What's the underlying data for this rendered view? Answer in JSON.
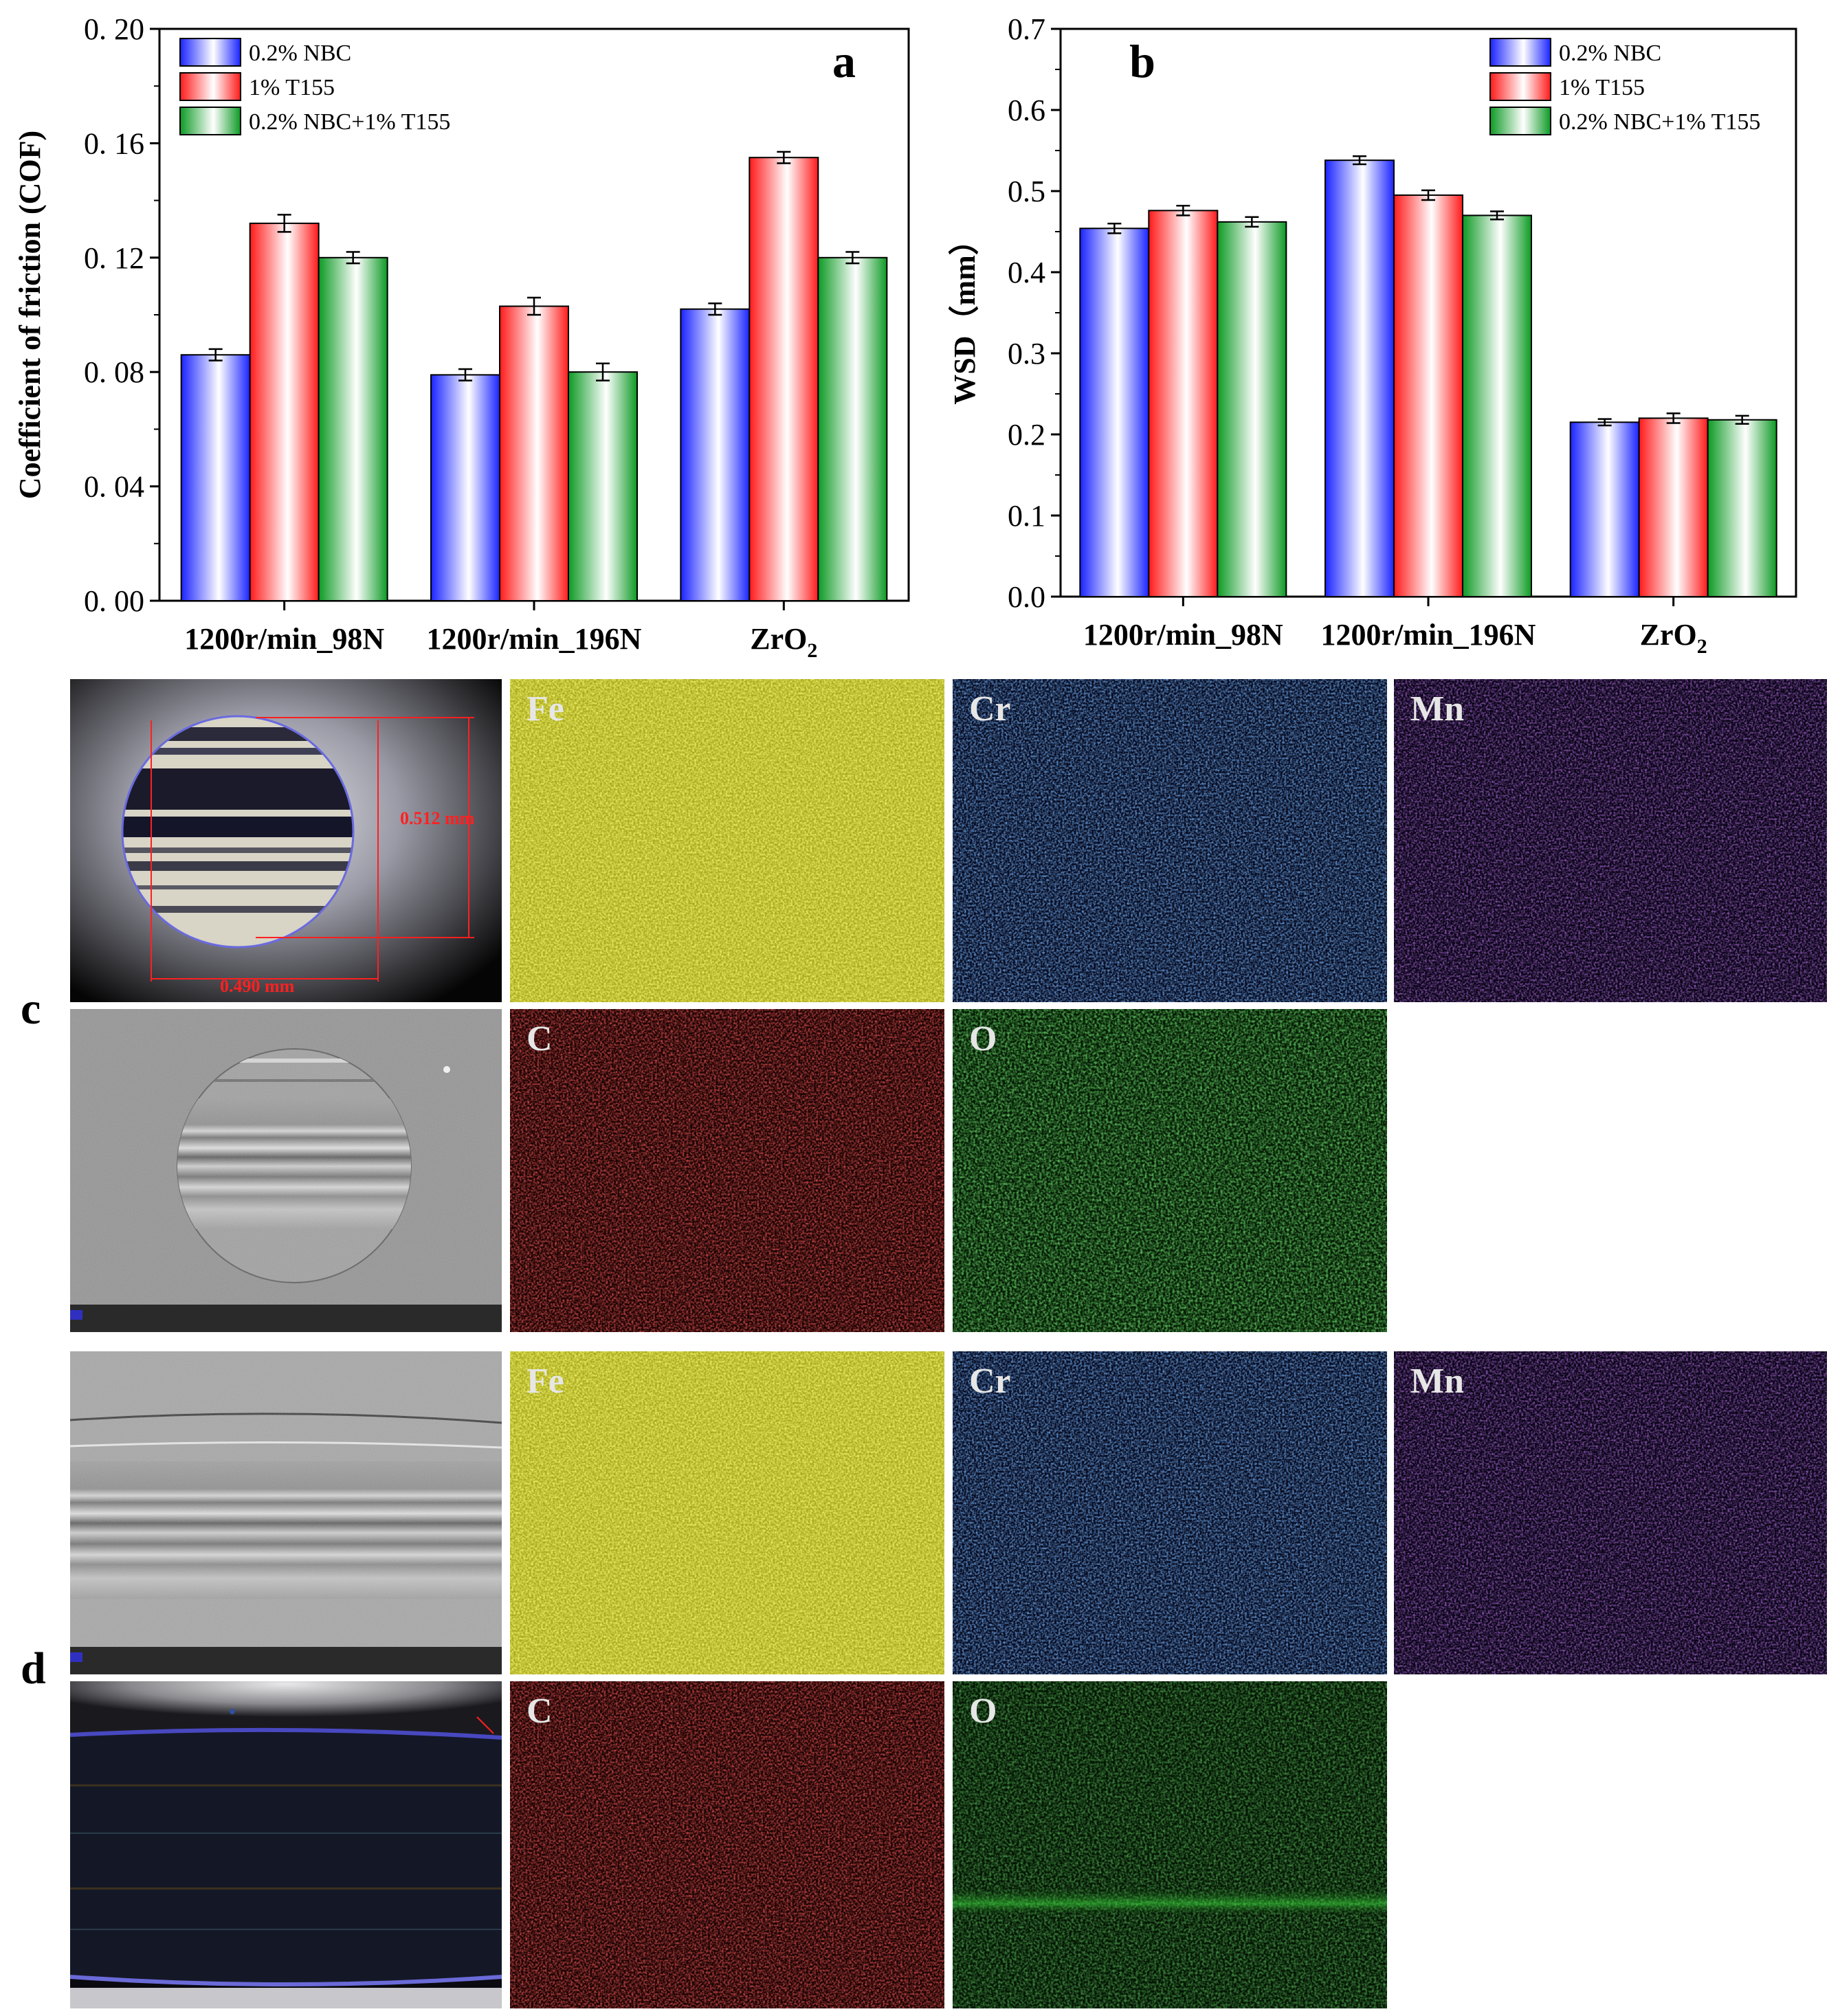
{
  "panels": {
    "c_label": "c",
    "d_label": "d",
    "c_map_labels": [
      "Fe",
      "Cr",
      "Mn",
      "C",
      "O"
    ],
    "d_map_labels": [
      "Fe",
      "Cr",
      "Mn",
      "C",
      "O"
    ],
    "c_measure_h": "0.490 mm",
    "c_measure_v": "0.512 mm"
  },
  "colors": {
    "series": [
      "#1a24ff",
      "#ff1a1a",
      "#0d9a24"
    ],
    "Fe": "#d8d820",
    "Cr": "#2f6fe0",
    "Mn": "#7a2ac8",
    "C": "#e01818",
    "O": "#2ab02a"
  },
  "chart_data": [
    {
      "type": "bar",
      "panel_letter": "a",
      "categories": [
        "1200r/min_98N",
        "1200r/min_196N",
        "ZrO"
      ],
      "category_subscripts": [
        "",
        "",
        "2"
      ],
      "series": [
        {
          "name": "0.2% NBC",
          "values": [
            0.086,
            0.079,
            0.102
          ],
          "errors": [
            0.002,
            0.002,
            0.002
          ]
        },
        {
          "name": "1% T155",
          "values": [
            0.132,
            0.103,
            0.155
          ],
          "errors": [
            0.003,
            0.003,
            0.002
          ]
        },
        {
          "name": "0.2% NBC+1% T155",
          "values": [
            0.12,
            0.08,
            0.12
          ],
          "errors": [
            0.002,
            0.003,
            0.002
          ]
        }
      ],
      "ylabel": "Coefficient of friction (COF)",
      "ylim": [
        0,
        0.2
      ],
      "yticks": [
        0.0,
        0.04,
        0.08,
        0.12,
        0.16,
        0.2
      ],
      "ytick_labels": [
        "0. 00",
        "0. 04",
        "0. 08",
        "0. 12",
        "0. 16",
        "0. 20"
      ],
      "legend_position": "top-left"
    },
    {
      "type": "bar",
      "panel_letter": "b",
      "categories": [
        "1200r/min_98N",
        "1200r/min_196N",
        "ZrO"
      ],
      "category_subscripts": [
        "",
        "",
        "2"
      ],
      "series": [
        {
          "name": "0.2% NBC",
          "values": [
            0.454,
            0.538,
            0.215
          ],
          "errors": [
            0.006,
            0.005,
            0.004
          ]
        },
        {
          "name": "1% T155",
          "values": [
            0.476,
            0.495,
            0.22
          ],
          "errors": [
            0.006,
            0.006,
            0.006
          ]
        },
        {
          "name": "0.2% NBC+1% T155",
          "values": [
            0.462,
            0.47,
            0.218
          ],
          "errors": [
            0.006,
            0.005,
            0.005
          ]
        }
      ],
      "ylabel": "WSD（mm）",
      "ylim": [
        0,
        0.7
      ],
      "yticks": [
        0.0,
        0.1,
        0.2,
        0.3,
        0.4,
        0.5,
        0.6,
        0.7
      ],
      "ytick_labels": [
        "0.0",
        "0.1",
        "0.2",
        "0.3",
        "0.4",
        "0.5",
        "0.6",
        "0.7"
      ],
      "legend_position": "top-right"
    }
  ]
}
